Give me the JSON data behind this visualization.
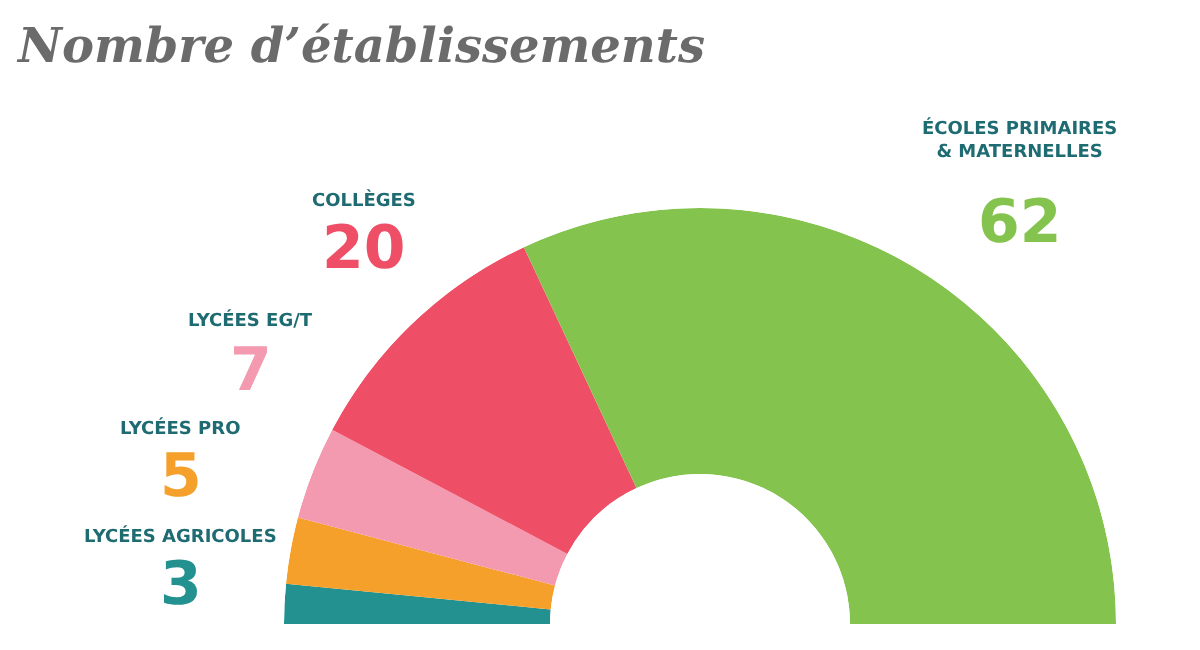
{
  "chart_data": {
    "type": "donut",
    "title": "Nombre d’établissements",
    "categories": [
      "LYCÉES AGRICOLES",
      "LYCÉES PRO",
      "LYCÉES EG/T",
      "COLLÈGES",
      "ÉCOLES PRIMAIRES & MATERNELLES"
    ],
    "values": [
      3,
      5,
      7,
      20,
      62
    ],
    "colors": [
      "#23918f",
      "#f5a02a",
      "#f49ab0",
      "#ef4f66",
      "#84c44e"
    ],
    "data_labels": true,
    "legend": false
  }
}
